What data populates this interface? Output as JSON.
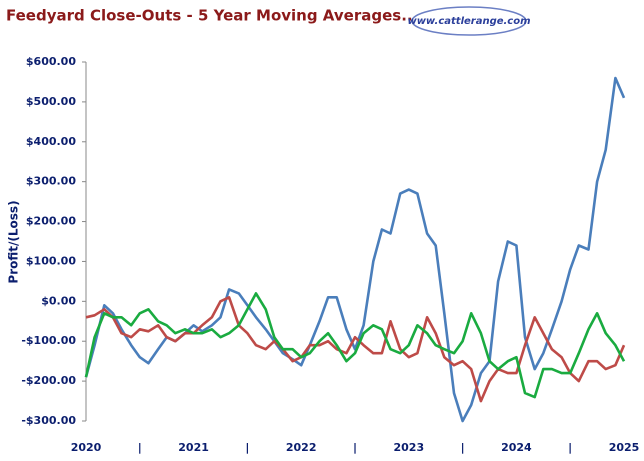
{
  "chart_data": {
    "type": "line",
    "title": "Feedyard Close-Outs - 5 Year Moving Averages...",
    "logo": "www.cattlerange.com",
    "y_label": "Profit/(Loss)",
    "x": [
      2020,
      2020.08,
      2020.17,
      2020.25,
      2020.33,
      2020.42,
      2020.5,
      2020.58,
      2020.67,
      2020.75,
      2020.83,
      2020.92,
      2021,
      2021.08,
      2021.17,
      2021.25,
      2021.33,
      2021.42,
      2021.5,
      2021.58,
      2021.67,
      2021.75,
      2021.83,
      2021.92,
      2022,
      2022.08,
      2022.17,
      2022.25,
      2022.33,
      2022.42,
      2022.5,
      2022.58,
      2022.67,
      2022.75,
      2022.83,
      2022.92,
      2023,
      2023.08,
      2023.17,
      2023.25,
      2023.33,
      2023.42,
      2023.5,
      2023.58,
      2023.67,
      2023.75,
      2023.83,
      2023.92,
      2024,
      2024.08,
      2024.17,
      2024.25,
      2024.33,
      2024.42,
      2024.5,
      2024.58,
      2024.67,
      2024.75,
      2024.83,
      2024.92,
      2025
    ],
    "series": [
      {
        "color": "#4a7ebb",
        "values": [
          -190,
          -110,
          -10,
          -30,
          -70,
          -110,
          -140,
          -155,
          -120,
          -90,
          -100,
          -80,
          -60,
          -75,
          -60,
          -40,
          30,
          20,
          -10,
          -40,
          -70,
          -100,
          -130,
          -145,
          -160,
          -110,
          -50,
          10,
          10,
          -70,
          -120,
          -60,
          100,
          180,
          170,
          270,
          280,
          270,
          170,
          140,
          -30,
          -230,
          -300,
          -260,
          -180,
          -150,
          50,
          150,
          140,
          -90,
          -170,
          -130,
          -70,
          0,
          80,
          140,
          130,
          300,
          380,
          560,
          510
        ]
      },
      {
        "color": "#be4b48",
        "values": [
          -40,
          -35,
          -20,
          -40,
          -80,
          -90,
          -70,
          -75,
          -60,
          -90,
          -100,
          -80,
          -80,
          -60,
          -40,
          0,
          10,
          -60,
          -80,
          -110,
          -120,
          -100,
          -120,
          -150,
          -140,
          -110,
          -110,
          -100,
          -120,
          -130,
          -90,
          -110,
          -130,
          -130,
          -50,
          -120,
          -140,
          -130,
          -40,
          -80,
          -140,
          -160,
          -150,
          -170,
          -250,
          -200,
          -170,
          -180,
          -180,
          -110,
          -40,
          -80,
          -120,
          -140,
          -180,
          -200,
          -150,
          -150,
          -170,
          -160,
          -110
        ]
      },
      {
        "color": "#1aab40",
        "values": [
          -190,
          -90,
          -30,
          -40,
          -40,
          -60,
          -30,
          -20,
          -50,
          -60,
          -80,
          -70,
          -80,
          -80,
          -70,
          -90,
          -80,
          -60,
          -20,
          20,
          -20,
          -90,
          -120,
          -120,
          -140,
          -130,
          -100,
          -80,
          -110,
          -150,
          -130,
          -80,
          -60,
          -70,
          -120,
          -130,
          -110,
          -60,
          -80,
          -110,
          -120,
          -130,
          -100,
          -30,
          -80,
          -150,
          -170,
          -150,
          -140,
          -230,
          -240,
          -170,
          -170,
          -180,
          -180,
          -130,
          -70,
          -30,
          -80,
          -110,
          -150
        ]
      }
    ],
    "xlim": [
      2020,
      2025
    ],
    "xticks": [
      2020,
      {
        "value": 2020.5,
        "label": "|"
      },
      2021,
      {
        "value": 2021.5,
        "label": "|"
      },
      2022,
      {
        "value": 2022.5,
        "label": "|"
      },
      2023,
      {
        "value": 2023.5,
        "label": "|"
      },
      2024,
      {
        "value": 2024.5,
        "label": "|"
      },
      2025
    ],
    "ylim": [
      -300,
      600
    ],
    "yticks": [
      {
        "value": -300,
        "label": "-$300.00"
      },
      {
        "value": -200,
        "label": "-$200.00"
      },
      {
        "value": -100,
        "label": "-$100.00"
      },
      {
        "value": 0,
        "label": "$0.00"
      },
      {
        "value": 100,
        "label": "$100.00"
      },
      {
        "value": 200,
        "label": "$200.00"
      },
      {
        "value": 300,
        "label": "$300.00"
      },
      {
        "value": 400,
        "label": "$400.00"
      },
      {
        "value": 500,
        "label": "$500.00"
      },
      {
        "value": 600,
        "label": "$600.00"
      }
    ],
    "grid": false
  }
}
